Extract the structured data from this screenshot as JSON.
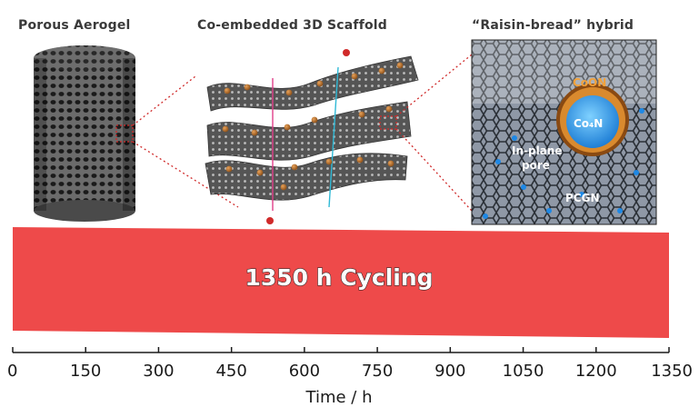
{
  "panels": {
    "aerogel": {
      "title": "Porous Aerogel"
    },
    "scaffold": {
      "title": "Co-embedded 3D Scaffold"
    },
    "hybrid": {
      "title": "“Raisin-bread” hybrid",
      "labels": {
        "shell": "CoON",
        "core": "Co₄N",
        "pore_line1": "In-plane",
        "pore_line2": "pore",
        "sheet": "PCGN"
      }
    }
  },
  "chart_data": {
    "type": "area",
    "title": "",
    "annotation": "1350 h Cycling",
    "xlabel": "Time / h",
    "ylabel": "",
    "xlim": [
      0,
      1350
    ],
    "xticks": [
      0,
      150,
      300,
      450,
      600,
      750,
      900,
      1050,
      1200,
      1350
    ],
    "series": [
      {
        "color": "#ee4a4a",
        "x_start": 0,
        "x_end": 1350
      }
    ]
  }
}
